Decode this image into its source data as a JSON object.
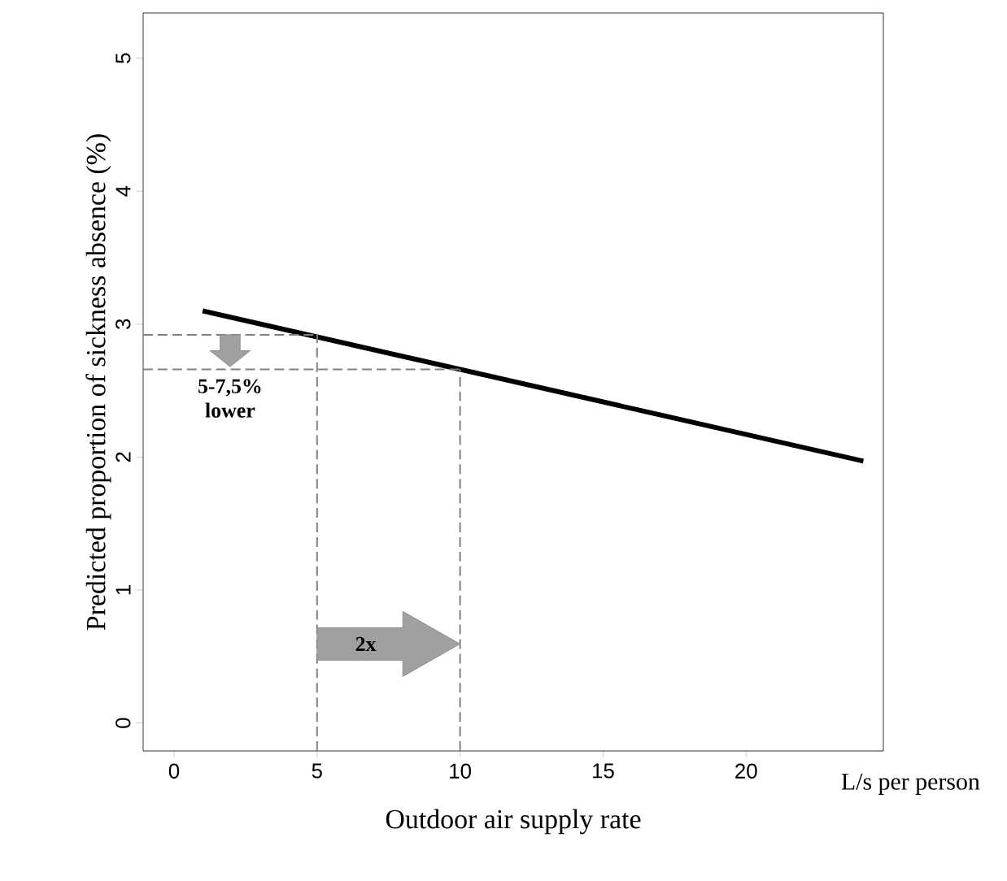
{
  "chart_data": {
    "type": "line",
    "xlabel": "Outdoor air supply rate",
    "ylabel": "Predicted proportion of sickness absence (%)",
    "x": [
      1,
      24.1
    ],
    "series": [
      {
        "color": "#000000",
        "values": [
          3.1,
          1.97
        ]
      }
    ],
    "xlim": [
      -1.08,
      24.8
    ],
    "ylim": [
      -0.21,
      5.34
    ],
    "xticks": [
      0,
      5,
      10,
      15,
      20
    ],
    "yticks": [
      0,
      1,
      2,
      3,
      4,
      5
    ],
    "grid": false,
    "marker": "none",
    "line_style": "solid",
    "ref_lines": [
      {
        "axis": "y",
        "value": 2.92,
        "color": "#808080",
        "line_style": "dashed"
      },
      {
        "axis": "y",
        "value": 2.66,
        "color": "#808080",
        "line_style": "dashed"
      },
      {
        "axis": "x",
        "value": 5,
        "color": "#808080",
        "line_style": "dashed"
      },
      {
        "axis": "x",
        "value": 10,
        "color": "#808080",
        "line_style": "dashed"
      }
    ],
    "annotations": [
      "L/s per person",
      "5-7,5% lower",
      "2x"
    ]
  }
}
